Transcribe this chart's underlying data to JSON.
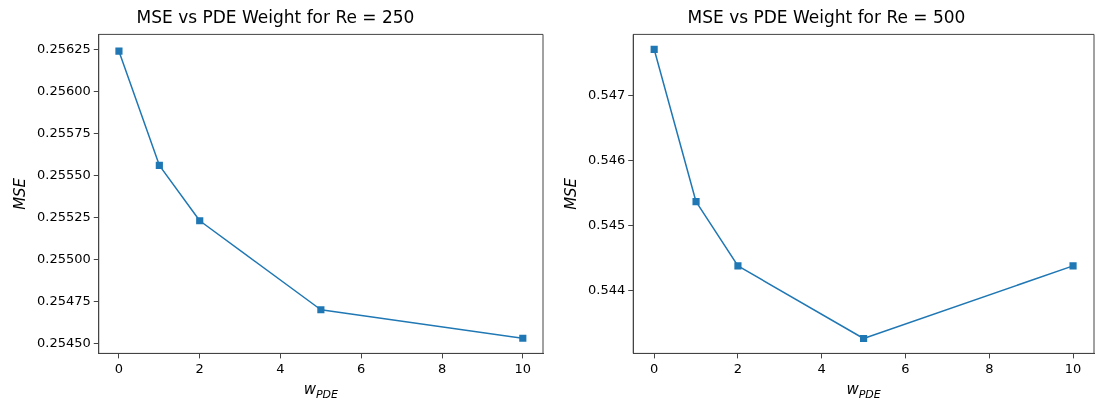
{
  "chart_data": [
    {
      "type": "line",
      "title": "MSE vs PDE Weight for Re = 250",
      "xlabel": "w$_{PDE}$",
      "ylabel": "MSE",
      "x": [
        0,
        1,
        2,
        5,
        10
      ],
      "series": [
        {
          "color": "#1f77b4",
          "values": [
            0.25624,
            0.25556,
            0.25523,
            0.2547,
            0.25453
          ]
        }
      ],
      "xlim": [
        -0.5,
        10.5
      ],
      "xticks": [
        0,
        2,
        4,
        6,
        8,
        10
      ],
      "ylim": [
        0.25444,
        0.25634
      ],
      "yticks": [
        {
          "value": 0.2545,
          "label": "0.25450"
        },
        {
          "value": 0.25475,
          "label": "0.25475"
        },
        {
          "value": 0.255,
          "label": "0.25500"
        },
        {
          "value": 0.25525,
          "label": "0.25525"
        },
        {
          "value": 0.2555,
          "label": "0.25550"
        },
        {
          "value": 0.25575,
          "label": "0.25575"
        },
        {
          "value": 0.256,
          "label": "0.25600"
        },
        {
          "value": 0.25625,
          "label": "0.25625"
        }
      ],
      "marker": "square",
      "line_style": "solid",
      "grid": false,
      "legend": false
    },
    {
      "type": "line",
      "title": "MSE vs PDE Weight for Re = 500",
      "xlabel": "w$_{PDE}$",
      "ylabel": "MSE",
      "x": [
        0,
        1,
        2,
        5,
        10
      ],
      "series": [
        {
          "color": "#1f77b4",
          "values": [
            0.54772,
            0.54537,
            0.54438,
            0.54326,
            0.54438
          ]
        }
      ],
      "xlim": [
        -0.5,
        10.5
      ],
      "xticks": [
        0,
        2,
        4,
        6,
        8,
        10
      ],
      "ylim": [
        0.54303,
        0.54795
      ],
      "yticks": [
        0.544,
        0.545,
        0.546,
        0.547
      ],
      "marker": "square",
      "line_style": "solid",
      "grid": false,
      "legend": false
    }
  ]
}
